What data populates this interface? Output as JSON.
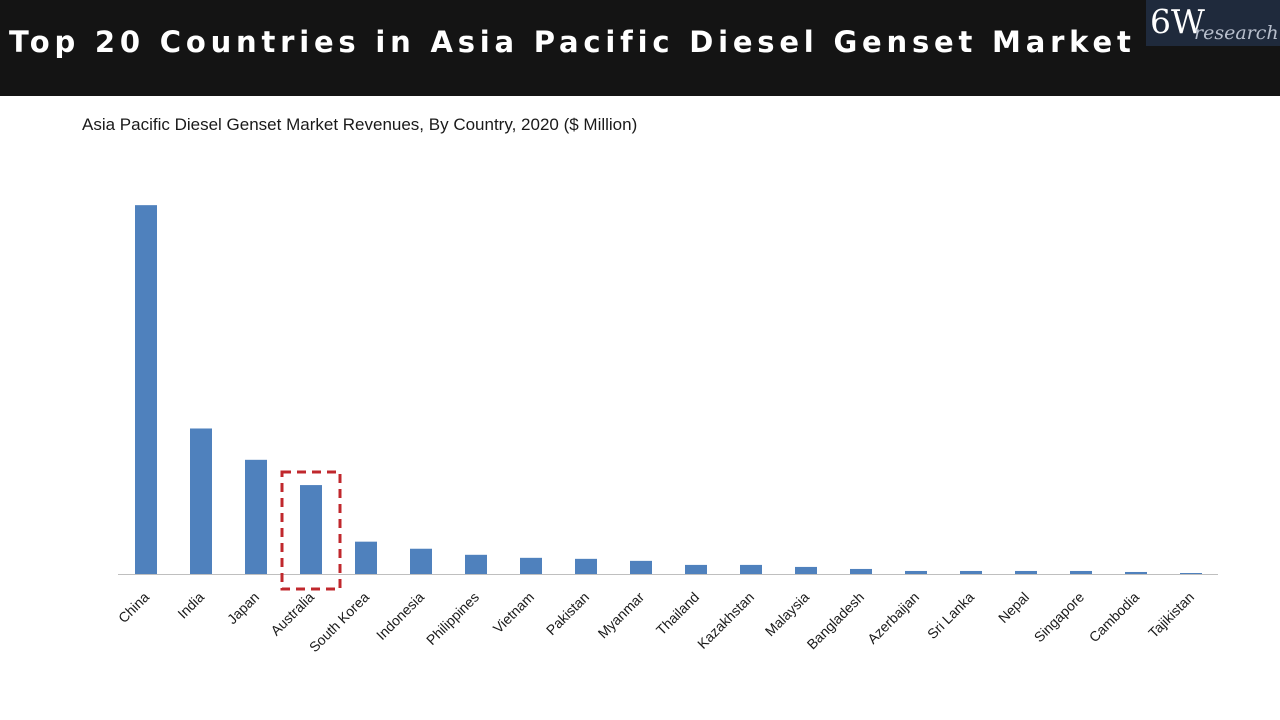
{
  "header": {
    "title": "Top 20 Countries in Asia Pacific Diesel Genset Market",
    "logo_main": "6W",
    "logo_sub": "research"
  },
  "colors": {
    "header_bg": "#141414",
    "bar": "#4f81bd",
    "highlight": "#c0282d",
    "axis": "#bfbfbf"
  },
  "chart_data": {
    "type": "bar",
    "title": "Asia Pacific Diesel Genset Market Revenues, By Country, 2020 ($ Million)",
    "xlabel": "",
    "ylabel": "",
    "categories": [
      "China",
      "India",
      "Japan",
      "Australia",
      "South Korea",
      "Indonesia",
      "Philippines",
      "Vietnam",
      "Pakistan",
      "Myanmar",
      "Thailand",
      "Kazakhstan",
      "Malaysia",
      "Bangladesh",
      "Azerbaijan",
      "Sri Lanka",
      "Nepal",
      "Singapore",
      "Cambodia",
      "Tajikistan"
    ],
    "values": [
      365,
      144,
      113,
      88,
      32,
      25,
      19,
      16,
      15,
      13,
      9,
      9,
      7,
      5,
      3,
      3,
      3,
      3,
      2,
      0.5
    ],
    "ylim": [
      0,
      380
    ],
    "value_axis_visible": false,
    "grid": false,
    "highlight_category": "Australia"
  }
}
